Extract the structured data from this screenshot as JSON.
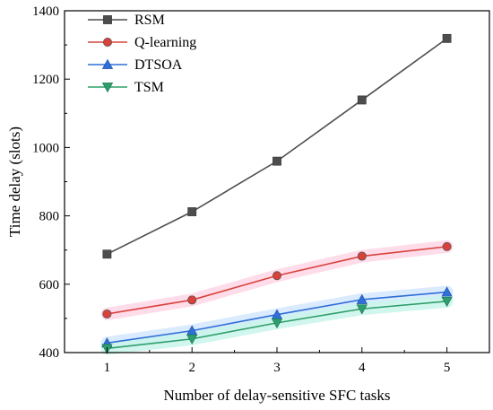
{
  "chart_data": {
    "type": "line",
    "title": "",
    "xlabel": "Number of delay-sensitive SFC tasks",
    "ylabel": "Time delay (slots)",
    "x": [
      1,
      2,
      3,
      4,
      5
    ],
    "xlim": [
      0.5,
      5.5
    ],
    "ylim": [
      400,
      1400
    ],
    "xticks": [
      "1",
      "2",
      "3",
      "4",
      "5"
    ],
    "yticks": [
      "400",
      "600",
      "800",
      "1000",
      "1200",
      "1400"
    ],
    "grid": false,
    "legend_position": "top-left",
    "series": [
      {
        "name": "RSM",
        "values": [
          688,
          812,
          960,
          1139,
          1319
        ],
        "color": "#4d4d4d",
        "marker": "square"
      },
      {
        "name": "Q-learning",
        "values": [
          513,
          554,
          625,
          682,
          710
        ],
        "color": "#d9413a",
        "marker": "circle"
      },
      {
        "name": "DTSOA",
        "values": [
          428,
          464,
          511,
          555,
          577
        ],
        "color": "#2f6fd6",
        "marker": "triangle-up"
      },
      {
        "name": "TSM",
        "values": [
          412,
          440,
          487,
          528,
          550
        ],
        "color": "#2e9e6c",
        "marker": "triangle-down"
      }
    ]
  }
}
